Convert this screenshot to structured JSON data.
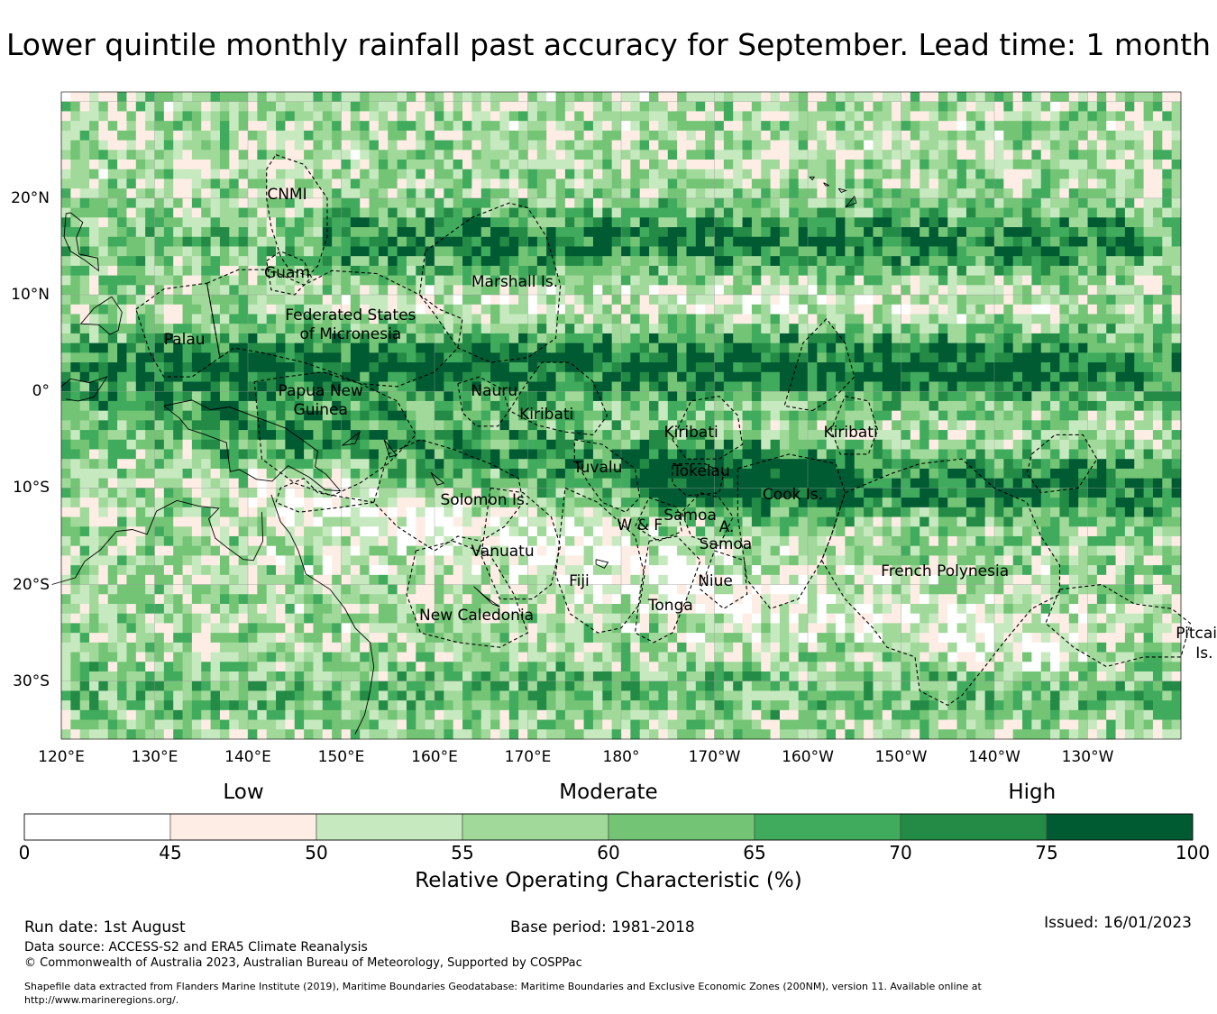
{
  "title": "Lower quintile monthly rainfall past accuracy for September. Lead time: 1 month",
  "map": {
    "lon_range": [
      120,
      240
    ],
    "lat_range": [
      -36,
      31
    ],
    "x_ticks": [
      "120°E",
      "130°E",
      "140°E",
      "150°E",
      "160°E",
      "170°E",
      "180°",
      "170°W",
      "160°W",
      "150°W",
      "140°W",
      "130°W"
    ],
    "y_ticks": [
      {
        "lat": 20,
        "label": "20°N"
      },
      {
        "lat": 10,
        "label": "10°N"
      },
      {
        "lat": 0,
        "label": "0°"
      },
      {
        "lat": -10,
        "label": "10°S"
      },
      {
        "lat": -20,
        "label": "20°S"
      },
      {
        "lat": -30,
        "label": "30°S"
      }
    ],
    "region_labels": [
      {
        "text": "CNMI",
        "lon": 144.2,
        "lat": 20.4
      },
      {
        "text": "Guam",
        "lon": 144.2,
        "lat": 12.2
      },
      {
        "text": "Marshall Is.",
        "lon": 168.6,
        "lat": 11.3
      },
      {
        "text": "Federated States",
        "lon": 151.0,
        "lat": 7.9
      },
      {
        "text": "of Micronesia",
        "lon": 151.0,
        "lat": 5.9
      },
      {
        "text": "Palau",
        "lon": 133.2,
        "lat": 5.3
      },
      {
        "text": "Papua New",
        "lon": 147.8,
        "lat": 0.0
      },
      {
        "text": "Guinea",
        "lon": 147.8,
        "lat": -1.9
      },
      {
        "text": "Nauru",
        "lon": 166.4,
        "lat": 0.0
      },
      {
        "text": "Kiribati",
        "lon": 172.0,
        "lat": -2.4
      },
      {
        "text": "Kiribati",
        "lon": -172.5,
        "lat": -4.3
      },
      {
        "text": "Kiribati",
        "lon": -155.4,
        "lat": -4.3
      },
      {
        "text": "Tuvalu",
        "lon": 177.5,
        "lat": -7.9
      },
      {
        "text": "Tokelau",
        "lon": -171.4,
        "lat": -8.3
      },
      {
        "text": "Cook Is.",
        "lon": -161.6,
        "lat": -10.7
      },
      {
        "text": "Solomon Is.",
        "lon": 165.4,
        "lat": -11.3
      },
      {
        "text": "W & F",
        "lon": 182.0,
        "lat": -13.9
      },
      {
        "text": "Samoa",
        "lon": -172.6,
        "lat": -12.9
      },
      {
        "text": "A.",
        "lon": -168.7,
        "lat": -14.1
      },
      {
        "text": "Samoa",
        "lon": -168.8,
        "lat": -15.8
      },
      {
        "text": "Vanuatu",
        "lon": 167.3,
        "lat": -16.6
      },
      {
        "text": "Fiji",
        "lon": 175.5,
        "lat": -19.7
      },
      {
        "text": "Niue",
        "lon": -169.9,
        "lat": -19.7
      },
      {
        "text": "Tonga",
        "lon": -174.7,
        "lat": -22.2
      },
      {
        "text": "French Polynesia",
        "lon": -145.3,
        "lat": -18.6
      },
      {
        "text": "New Caledonia",
        "lon": 164.5,
        "lat": -23.2
      },
      {
        "text": "Pitcairn",
        "lon": -117.5,
        "lat": -25.1
      },
      {
        "text": "Is.",
        "lon": -117.5,
        "lat": -27.1
      }
    ]
  },
  "colorbar": {
    "categories": [
      "Low",
      "Moderate",
      "High"
    ],
    "tick_labels": [
      "0",
      "45",
      "50",
      "55",
      "60",
      "65",
      "70",
      "75",
      "100"
    ],
    "colors": [
      "#ffffff",
      "#feede4",
      "#c7e9c0",
      "#a1d99b",
      "#74c476",
      "#41ab5d",
      "#238b45",
      "#005a32"
    ],
    "label": "Relative Operating Characteristic (%)"
  },
  "footer": {
    "run_date": "Run date: 1st August",
    "base_period": "Base period: 1981-2018",
    "issued": "Issued: 16/01/2023",
    "data_source": "Data source: ACCESS-S2 and ERA5 Climate Reanalysis",
    "copyright": "© Commonwealth of Australia 2023, Australian Bureau of Meteorology, Supported by COSPPac",
    "shapefile_1": "Shapefile data extracted from Flanders Marine Institute (2019), Maritime Boundaries Geodatabase: Maritime Boundaries and Exclusive Economic Zones (200NM), version 11. Available online at",
    "shapefile_2": "http://www.marineregions.org/."
  }
}
